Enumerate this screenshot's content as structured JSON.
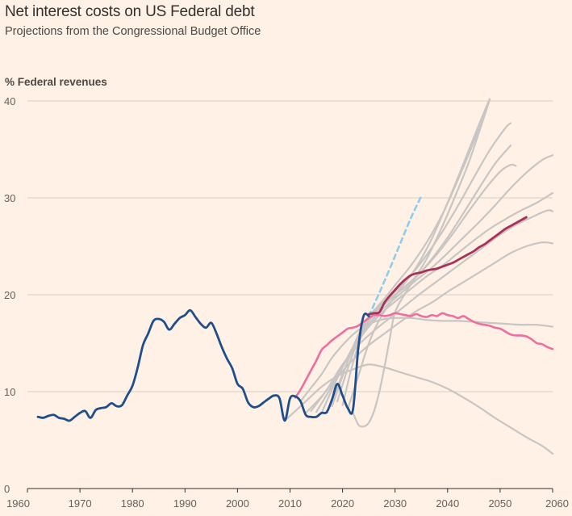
{
  "title": "Net interest costs on US Federal debt",
  "subtitle": "Projections from the Congressional Budget Office",
  "chart_data": {
    "type": "line",
    "title": "Net interest costs on US Federal debt",
    "subtitle": "Projections from the Congressional Budget Office",
    "ylabel": "% Federal revenues",
    "xlabel": "",
    "xlim": [
      1960,
      2060
    ],
    "ylim": [
      0,
      40
    ],
    "x_ticks": [
      1960,
      1970,
      1980,
      1990,
      2000,
      2010,
      2020,
      2030,
      2040,
      2050,
      2060
    ],
    "y_ticks": [
      0,
      10,
      20,
      30,
      40
    ],
    "grid": "horizontal",
    "legend": "none",
    "colors": {
      "historical": "#1f4e8c",
      "projection_grey": "#c8c5c3",
      "projection_latest": "#a8315b",
      "projection_pink": "#ee6ea0",
      "projection_dashed": "#8ecde9",
      "grid": "#d9cfc5",
      "axis": "#33302e"
    },
    "series": [
      {
        "style": "historical",
        "x": [
          1962,
          1963,
          1964,
          1965,
          1966,
          1967,
          1968,
          1969,
          1970,
          1971,
          1972,
          1973,
          1974,
          1975,
          1976,
          1977,
          1978,
          1979,
          1980,
          1981,
          1982,
          1983,
          1984,
          1985,
          1986,
          1987,
          1988,
          1989,
          1990,
          1991,
          1992,
          1993,
          1994,
          1995,
          1996,
          1997,
          1998,
          1999,
          2000,
          2001,
          2002,
          2003,
          2004,
          2005,
          2006,
          2007,
          2008,
          2009,
          2010,
          2011,
          2012,
          2013,
          2014,
          2015,
          2016,
          2017,
          2018,
          2019,
          2020,
          2021,
          2022,
          2023,
          2024,
          2025
        ],
        "y": [
          7.4,
          7.3,
          7.5,
          7.6,
          7.3,
          7.2,
          7.0,
          7.4,
          7.8,
          8.0,
          7.3,
          8.1,
          8.3,
          8.4,
          8.8,
          8.5,
          8.6,
          9.6,
          10.6,
          12.5,
          14.8,
          16.0,
          17.3,
          17.5,
          17.2,
          16.4,
          17.0,
          17.6,
          17.9,
          18.4,
          17.7,
          17.0,
          16.6,
          17.1,
          16.0,
          14.6,
          13.4,
          12.4,
          10.8,
          10.3,
          8.9,
          8.4,
          8.5,
          8.9,
          9.3,
          9.6,
          9.3,
          7.0,
          9.3,
          9.5,
          9.0,
          7.6,
          7.4,
          7.4,
          7.8,
          7.9,
          9.2,
          10.8,
          9.6,
          8.3,
          8.2,
          14.5,
          17.8,
          17.8
        ]
      },
      {
        "style": "projection_dashed",
        "x": [
          2025,
          2027,
          2029,
          2031,
          2033,
          2035
        ],
        "y": [
          17.8,
          20.2,
          22.7,
          25.3,
          27.9,
          30.2
        ]
      },
      {
        "style": "projection_pink",
        "x": [
          2011,
          2012,
          2013,
          2014,
          2015,
          2016,
          2017,
          2018,
          2019,
          2020,
          2021,
          2022,
          2023,
          2024,
          2025,
          2026,
          2027,
          2028,
          2029,
          2030,
          2031,
          2032,
          2033,
          2034,
          2035,
          2036,
          2037,
          2038,
          2039,
          2040,
          2041,
          2042,
          2043,
          2044,
          2045,
          2046,
          2047,
          2048,
          2049,
          2050,
          2051,
          2052,
          2053,
          2054,
          2055,
          2056,
          2057,
          2058,
          2059,
          2060
        ],
        "y": [
          9.4,
          10.2,
          11.2,
          12.2,
          13.2,
          14.3,
          14.8,
          15.3,
          15.7,
          16.1,
          16.5,
          16.6,
          16.8,
          17.2,
          17.6,
          17.9,
          17.9,
          17.8,
          17.9,
          18.1,
          18.0,
          17.9,
          17.8,
          18.0,
          17.8,
          17.7,
          17.9,
          17.8,
          18.1,
          17.9,
          17.8,
          17.6,
          17.8,
          17.5,
          17.2,
          17.0,
          16.9,
          16.8,
          16.6,
          16.5,
          16.2,
          15.9,
          15.8,
          15.8,
          15.7,
          15.4,
          15.0,
          14.9,
          14.6,
          14.4
        ]
      },
      {
        "style": "projection_latest",
        "x": [
          2025,
          2026,
          2027,
          2028,
          2029,
          2030,
          2031,
          2032,
          2033,
          2034,
          2035,
          2036,
          2037,
          2038,
          2039,
          2040,
          2041,
          2042,
          2043,
          2044,
          2045,
          2046,
          2047,
          2048,
          2049,
          2050,
          2051,
          2052,
          2053,
          2054,
          2055
        ],
        "y": [
          18.0,
          18.1,
          18.2,
          19.2,
          19.9,
          20.5,
          21.1,
          21.6,
          22.0,
          22.2,
          22.3,
          22.5,
          22.6,
          22.7,
          22.9,
          23.1,
          23.3,
          23.6,
          23.9,
          24.2,
          24.5,
          24.9,
          25.2,
          25.6,
          26.0,
          26.4,
          26.8,
          27.1,
          27.4,
          27.7,
          28.0
        ]
      },
      {
        "style": "projection_grey",
        "x": [
          2009,
          2011,
          2013,
          2016,
          2019,
          2022,
          2025,
          2028,
          2031,
          2034,
          2037,
          2040,
          2043,
          2046,
          2049,
          2052,
          2055,
          2058,
          2060
        ],
        "y": [
          7.0,
          8.0,
          9.0,
          10.5,
          11.6,
          12.3,
          12.8,
          12.5,
          12.0,
          11.5,
          11.0,
          10.3,
          9.4,
          8.4,
          7.3,
          6.3,
          5.3,
          4.4,
          3.6
        ]
      },
      {
        "style": "projection_grey",
        "x": [
          2022,
          2023,
          2024,
          2025,
          2026,
          2027,
          2028,
          2029,
          2030,
          2032,
          2034,
          2036,
          2038,
          2040,
          2042,
          2044,
          2046,
          2048
        ],
        "y": [
          7.8,
          6.6,
          6.4,
          6.8,
          8.0,
          10.0,
          12.6,
          15.5,
          18.2,
          20.2,
          21.9,
          23.7,
          25.9,
          28.3,
          30.9,
          33.6,
          36.8,
          40.1
        ]
      },
      {
        "style": "projection_grey",
        "x": [
          2013,
          2016,
          2019,
          2022,
          2025,
          2028,
          2031,
          2034,
          2037,
          2040,
          2043,
          2046,
          2049,
          2052,
          2055,
          2058,
          2060
        ],
        "y": [
          7.8,
          9.5,
          11.5,
          13.3,
          14.8,
          16.0,
          17.2,
          18.3,
          19.2,
          20.3,
          21.3,
          22.3,
          23.3,
          24.3,
          25.0,
          25.4,
          25.3
        ]
      },
      {
        "style": "projection_grey",
        "x": [
          2014,
          2017,
          2020,
          2023,
          2026,
          2029,
          2032,
          2035,
          2038,
          2041,
          2044,
          2047,
          2050,
          2053,
          2056,
          2059,
          2060
        ],
        "y": [
          8.0,
          10.2,
          12.8,
          14.8,
          16.3,
          17.6,
          18.9,
          20.2,
          21.4,
          22.6,
          23.8,
          25.0,
          26.2,
          27.2,
          28.0,
          28.7,
          28.6
        ]
      },
      {
        "style": "projection_grey",
        "x": [
          2015,
          2018,
          2021,
          2024,
          2027,
          2030,
          2033,
          2036,
          2039,
          2042,
          2045,
          2048,
          2051,
          2054,
          2057,
          2060
        ],
        "y": [
          7.9,
          10.6,
          13.5,
          16.0,
          17.9,
          19.3,
          20.6,
          21.9,
          23.0,
          24.3,
          25.6,
          26.8,
          27.8,
          28.7,
          29.5,
          30.5
        ]
      },
      {
        "style": "projection_grey",
        "x": [
          2016,
          2019,
          2022,
          2025,
          2028,
          2031,
          2034,
          2037,
          2040,
          2043,
          2046,
          2049,
          2052,
          2055,
          2058,
          2060
        ],
        "y": [
          7.8,
          11.4,
          14.6,
          17.0,
          18.7,
          20.1,
          21.5,
          22.8,
          24.3,
          25.9,
          27.5,
          29.2,
          31.0,
          32.6,
          33.9,
          34.4
        ]
      },
      {
        "style": "projection_grey",
        "x": [
          2017,
          2020,
          2023,
          2026,
          2029,
          2032,
          2035,
          2038,
          2041,
          2044,
          2047,
          2050,
          2052,
          2053
        ],
        "y": [
          7.8,
          11.8,
          15.6,
          18.0,
          19.5,
          20.9,
          22.4,
          24.2,
          26.3,
          28.6,
          30.8,
          32.7,
          33.4,
          33.3
        ]
      },
      {
        "style": "projection_grey",
        "x": [
          2018,
          2020,
          2022,
          2024,
          2026,
          2028,
          2031,
          2034,
          2037,
          2040,
          2043,
          2046,
          2049,
          2052
        ],
        "y": [
          8.5,
          11.6,
          14.6,
          16.9,
          18.4,
          19.3,
          20.4,
          21.8,
          23.7,
          25.9,
          28.4,
          31.0,
          33.5,
          35.4
        ]
      },
      {
        "style": "projection_grey",
        "x": [
          2019,
          2021,
          2023,
          2025,
          2027,
          2030,
          2033,
          2036,
          2039,
          2042,
          2045,
          2048,
          2051,
          2052
        ],
        "y": [
          9.0,
          12.4,
          15.4,
          17.5,
          18.8,
          20.3,
          22.0,
          24.1,
          26.5,
          29.2,
          32.1,
          34.9,
          37.2,
          37.7
        ]
      },
      {
        "style": "projection_grey",
        "x": [
          2020,
          2022,
          2024,
          2026,
          2028,
          2030,
          2033,
          2036,
          2039,
          2042,
          2045,
          2047
        ],
        "y": [
          8.6,
          13.0,
          16.3,
          18.3,
          19.6,
          21.0,
          23.0,
          25.4,
          28.3,
          31.9,
          35.8,
          38.8
        ]
      },
      {
        "style": "projection_grey",
        "x": [
          2021,
          2023,
          2025,
          2027,
          2029,
          2031,
          2034,
          2037,
          2040,
          2043,
          2046,
          2048
        ],
        "y": [
          8.2,
          11.6,
          15.0,
          17.4,
          19.1,
          20.6,
          22.8,
          25.8,
          29.5,
          33.5,
          37.6,
          40.2
        ]
      },
      {
        "style": "projection_grey",
        "x": [
          2012,
          2014,
          2016,
          2018,
          2020,
          2022,
          2024,
          2026,
          2028,
          2030,
          2033,
          2036,
          2039,
          2042,
          2045,
          2048,
          2051,
          2054,
          2057,
          2060
        ],
        "y": [
          9.0,
          10.4,
          11.8,
          13.5,
          14.8,
          15.9,
          16.7,
          17.2,
          17.5,
          17.6,
          17.6,
          17.4,
          17.3,
          17.3,
          17.2,
          17.1,
          17.0,
          16.9,
          16.9,
          16.7
        ]
      }
    ]
  }
}
